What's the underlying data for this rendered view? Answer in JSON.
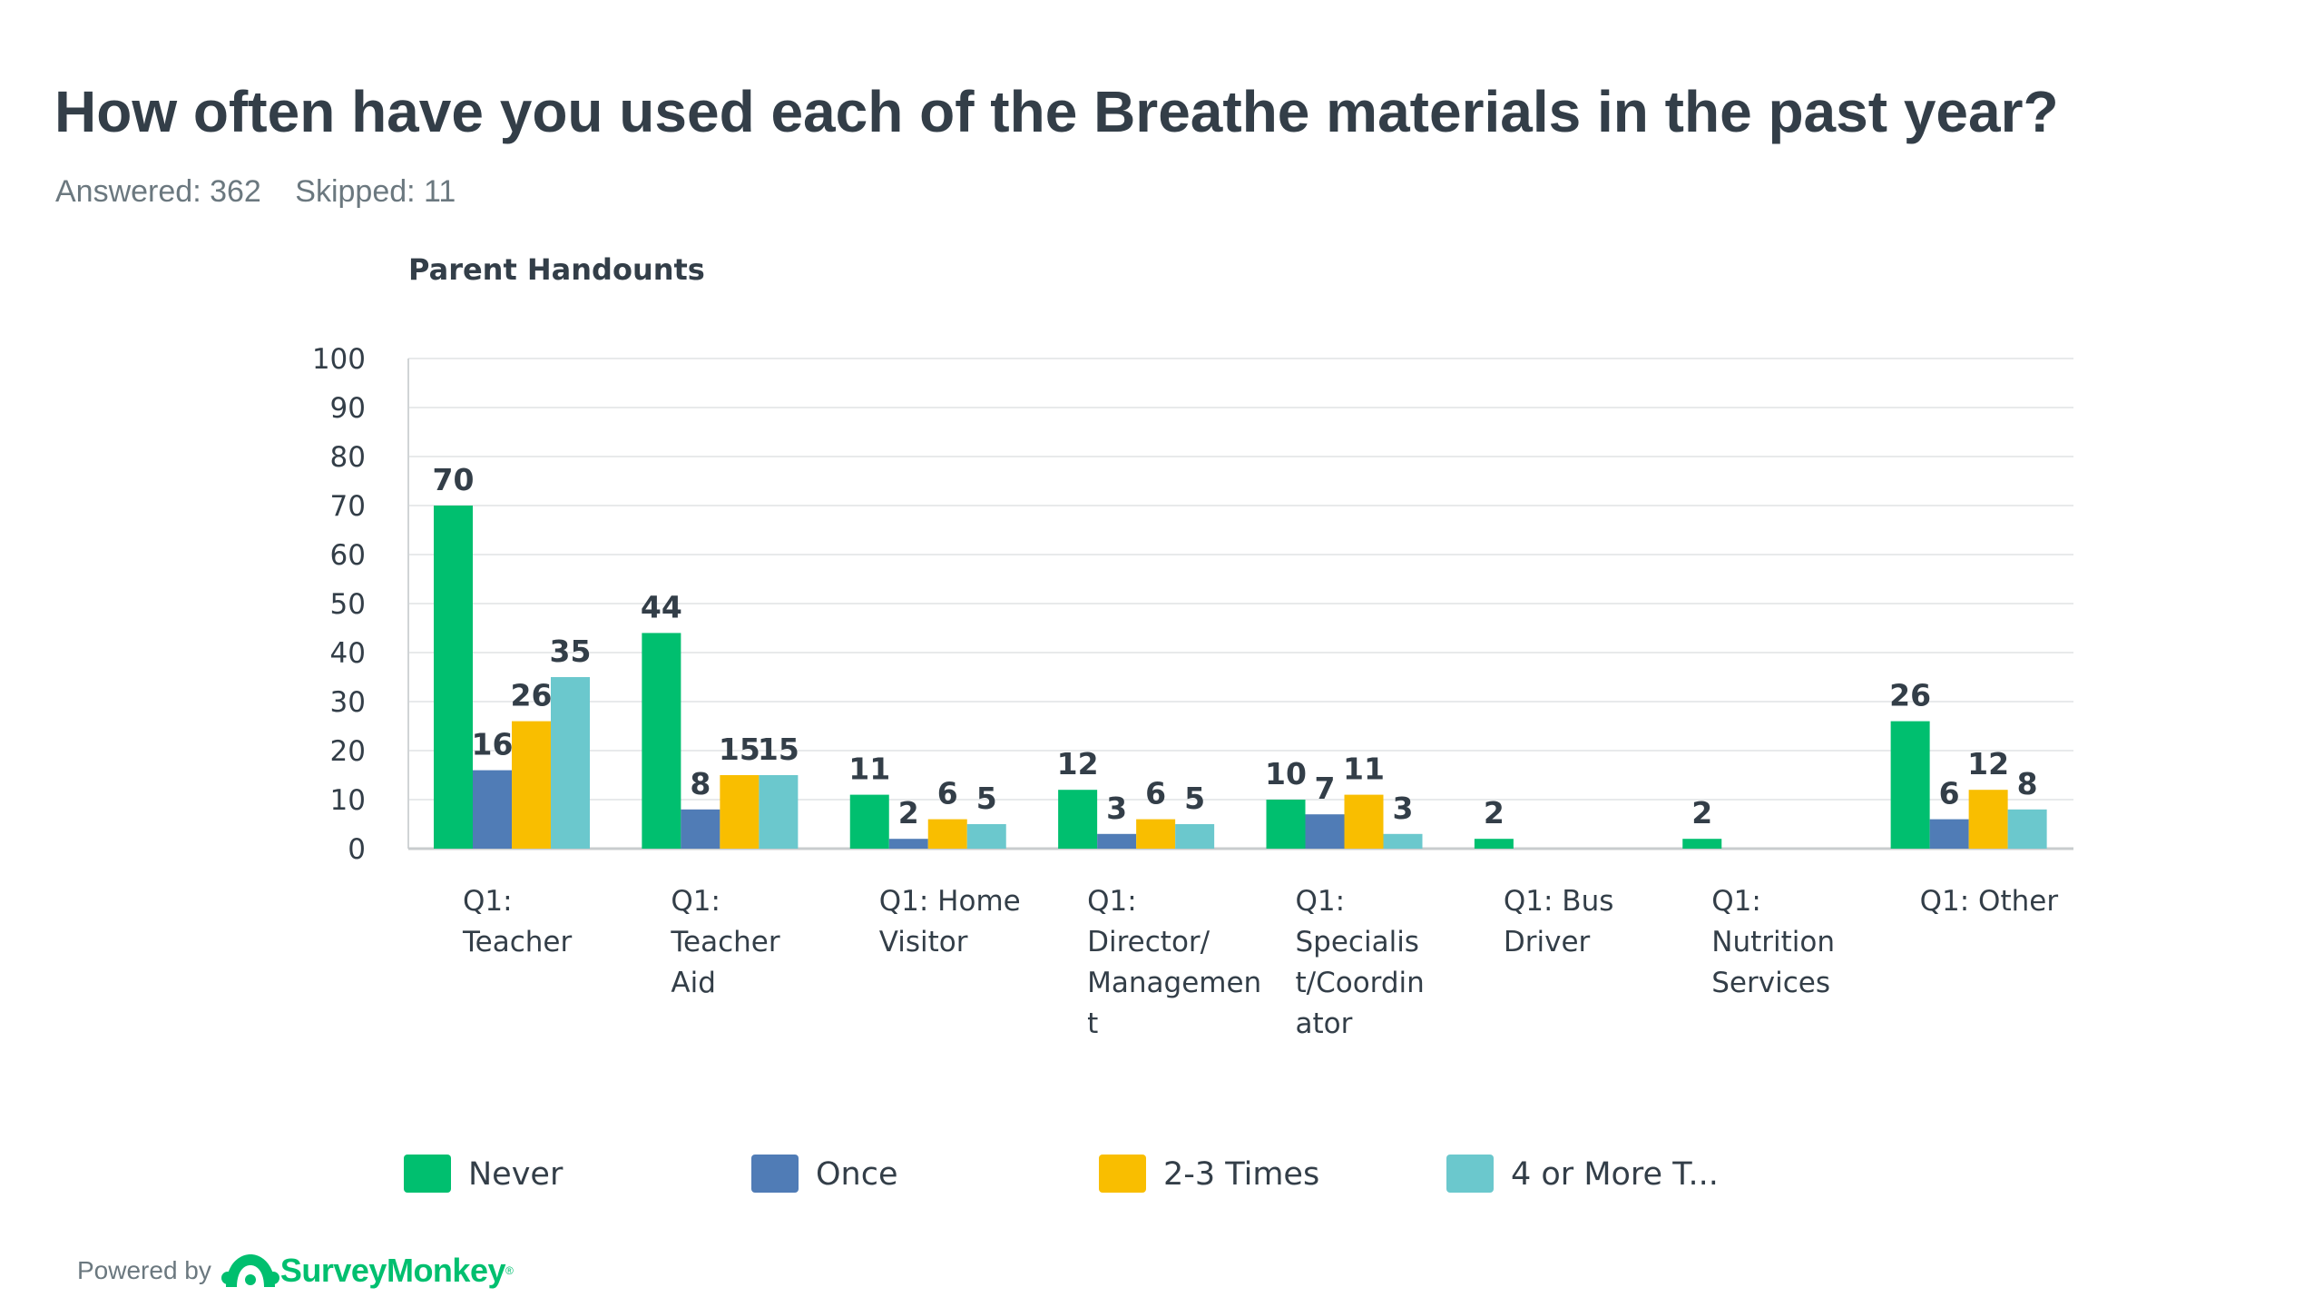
{
  "page": {
    "title": "How often have you used each of the Breathe materials in the past year?",
    "answered": "Answered: 362",
    "skipped": "Skipped: 11",
    "powered_by": "Powered by",
    "brand": "SurveyMonkey",
    "brand_mark": "®",
    "logo_icon": "surveymonkey-logo-icon"
  },
  "chart_data": {
    "type": "bar",
    "title": "Parent Handounts",
    "ylim": [
      0,
      100
    ],
    "yticks": [
      0,
      10,
      20,
      30,
      40,
      50,
      60,
      70,
      80,
      90,
      100
    ],
    "grid": true,
    "legend_position": "bottom",
    "categories": [
      [
        "Q1:",
        "Teacher"
      ],
      [
        "Q1:",
        "Teacher",
        "Aid"
      ],
      [
        "Q1: Home",
        "Visitor"
      ],
      [
        "Q1:",
        "Director/",
        "Managemen",
        "t"
      ],
      [
        "Q1:",
        "Specialis",
        "t/Coordin",
        "ator"
      ],
      [
        "Q1: Bus",
        "Driver"
      ],
      [
        "Q1:",
        "Nutrition",
        "Services"
      ],
      [
        "Q1: Other"
      ]
    ],
    "series": [
      {
        "name": "Never",
        "color": "#00bf6f",
        "values": [
          70,
          44,
          11,
          12,
          10,
          2,
          2,
          26
        ]
      },
      {
        "name": "Once",
        "color": "#507cb6",
        "values": [
          16,
          8,
          2,
          3,
          7,
          null,
          null,
          6
        ]
      },
      {
        "name": "2-3 Times",
        "color": "#f9be00",
        "values": [
          26,
          15,
          6,
          6,
          11,
          null,
          null,
          12
        ]
      },
      {
        "name": "4 or More T...",
        "color": "#6bc8cd",
        "values": [
          35,
          15,
          5,
          5,
          3,
          null,
          null,
          8
        ]
      }
    ]
  }
}
